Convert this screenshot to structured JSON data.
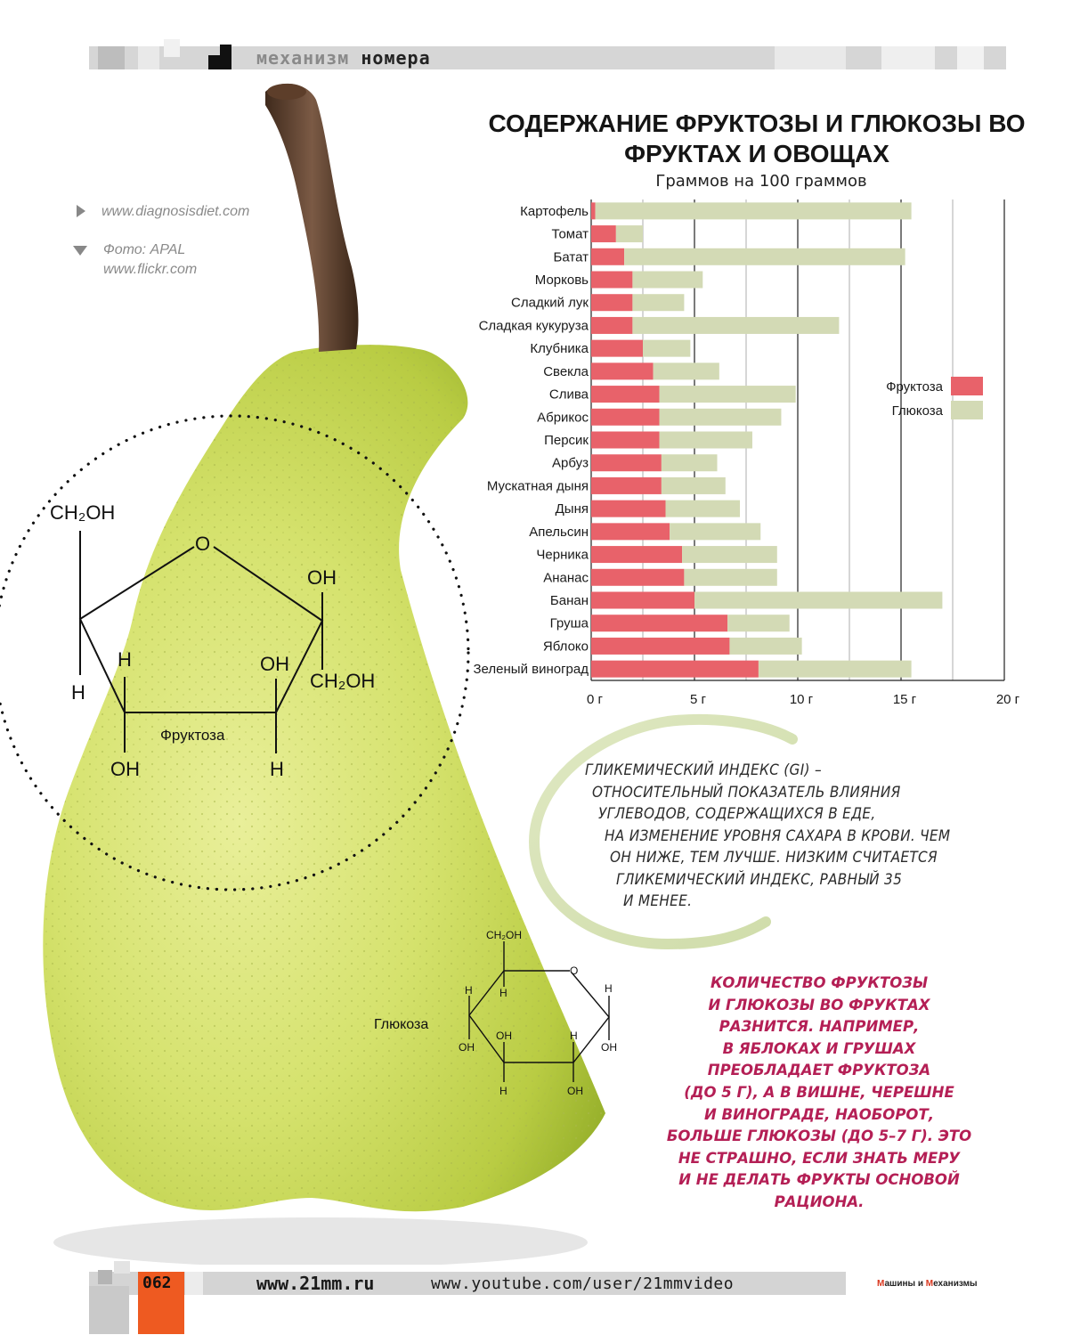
{
  "header": {
    "section_a": "механизм",
    "section_b": "номера"
  },
  "credits": {
    "source_url": "www.diagnosisdiet.com",
    "photo_label": "Фото: APAL",
    "photo_url": "www.flickr.com"
  },
  "formulas": {
    "fructose": {
      "name": "Фруктоза",
      "ch2oh_top": "CH₂OH",
      "o_ring": "O",
      "oh_right_top": "OH",
      "h_left_inner": "H",
      "h_left_outer": "H",
      "oh_mid": "OH",
      "ch2oh_right": "CH₂OH",
      "oh_bottom_left": "OH",
      "h_bottom_right": "H"
    },
    "glucose": {
      "name": "Глюкоза",
      "ch2oh_top": "CH₂OH",
      "o_ring": "O",
      "h_right_top": "H",
      "h_left_top": "H",
      "h_inner_top": "H",
      "oh_left": "OH",
      "oh_inner": "OH",
      "h_inner_right": "H",
      "oh_right": "OH",
      "h_bottom": "H",
      "oh_bottom": "OH"
    }
  },
  "chart_data": {
    "type": "bar",
    "stacked": true,
    "orientation": "horizontal",
    "title": "СОДЕРЖАНИЕ ФРУКТОЗЫ И ГЛЮКОЗЫ ВО ФРУКТАХ И ОВОЩАХ",
    "subtitle": "Граммов на 100 граммов",
    "xlim": [
      0,
      20
    ],
    "ticks": [
      "0 г",
      "5 г",
      "10 г",
      "15 г",
      "20 г"
    ],
    "grid": true,
    "legend_position": "right",
    "categories": [
      "Картофель",
      "Томат",
      "Батат",
      "Морковь",
      "Сладкий лук",
      "Сладкая кукуруза",
      "Клубника",
      "Свекла",
      "Слива",
      "Абрикос",
      "Персик",
      "Арбуз",
      "Мускатная дыня",
      "Дыня",
      "Апельсин",
      "Черника",
      "Ананас",
      "Банан",
      "Груша",
      "Яблоко",
      "Зеленый виноград"
    ],
    "series": [
      {
        "name": "Фруктоза",
        "color": "#e8626a",
        "values": [
          0.2,
          1.2,
          1.6,
          2.0,
          2.0,
          2.0,
          2.5,
          3.0,
          3.3,
          3.3,
          3.3,
          3.4,
          3.4,
          3.6,
          3.8,
          4.4,
          4.5,
          5.0,
          6.6,
          6.7,
          8.1
        ]
      },
      {
        "name": "Глюкоза",
        "color": "#d3dab5",
        "values": [
          15.3,
          1.3,
          13.6,
          3.4,
          2.5,
          10.0,
          2.3,
          3.2,
          6.6,
          5.9,
          4.5,
          2.7,
          3.1,
          3.6,
          4.4,
          4.6,
          4.5,
          12.0,
          3.0,
          3.5,
          7.4
        ]
      }
    ]
  },
  "gi_text": [
    "ГЛИКЕМИЧЕСКИЙ ИНДЕКС (GI) –",
    "ОТНОСИТЕЛЬНЫЙ ПОКАЗАТЕЛЬ ВЛИЯНИЯ",
    "УГЛЕВОДОВ, СОДЕРЖАЩИХСЯ В ЕДЕ,",
    "НА ИЗМЕНЕНИЕ УРОВНЯ САХАРА В КРОВИ. ЧЕМ",
    "ОН НИЖЕ, ТЕМ ЛУЧШЕ. НИЗКИМ СЧИТАЕТСЯ",
    "ГЛИКЕМИЧЕСКИЙ ИНДЕКС, РАВНЫЙ 35",
    "И МЕНЕЕ."
  ],
  "highlight_text": [
    "КОЛИЧЕСТВО ФРУКТОЗЫ",
    "И ГЛЮКОЗЫ ВО ФРУКТАХ",
    "РАЗНИТСЯ. НАПРИМЕР,",
    "В ЯБЛОКАХ И ГРУШАХ",
    "ПРЕОБЛАДАЕТ ФРУКТОЗА",
    "(ДО 5 Г), А В ВИШНЕ, ЧЕРЕШНЕ",
    "И ВИНОГРАДЕ, НАОБОРОТ,",
    "БОЛЬШЕ ГЛЮКОЗЫ (ДО 5–7 Г). ЭТО",
    "НЕ СТРАШНО, ЕСЛИ ЗНАТЬ МЕРУ",
    "И НЕ ДЕЛАТЬ ФРУКТЫ ОСНОВОЙ",
    "РАЦИОНА."
  ],
  "footer": {
    "page_number": "062",
    "site": "www.21mm.ru",
    "youtube": "www.youtube.com/user/21mmvideo",
    "brand_a": "М",
    "brand_b": "ашины и ",
    "brand_c": "М",
    "brand_d": "еханизмы"
  }
}
